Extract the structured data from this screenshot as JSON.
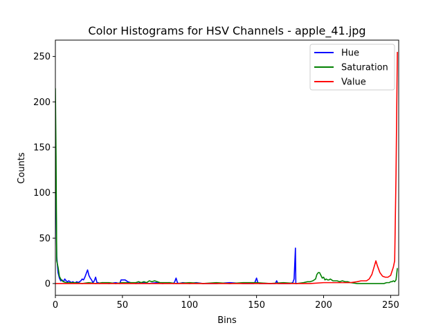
{
  "chart_data": {
    "type": "line",
    "title": "Color Histograms for HSV Channels - apple_41.jpg",
    "xlabel": "Bins",
    "ylabel": "Counts",
    "xlim": [
      0,
      256
    ],
    "ylim": [
      -13,
      268
    ],
    "xticks": [
      0,
      50,
      100,
      150,
      200,
      250
    ],
    "yticks": [
      0,
      50,
      100,
      150,
      200,
      250
    ],
    "grid": false,
    "legend_position": "top-right",
    "series": [
      {
        "name": "Hue",
        "color": "#0000ff",
        "points": [
          [
            0,
            160
          ],
          [
            1,
            30
          ],
          [
            2,
            12
          ],
          [
            3,
            6
          ],
          [
            4,
            3
          ],
          [
            5,
            4
          ],
          [
            6,
            2
          ],
          [
            7,
            5
          ],
          [
            8,
            3
          ],
          [
            9,
            2
          ],
          [
            10,
            3
          ],
          [
            11,
            2
          ],
          [
            12,
            1
          ],
          [
            13,
            2
          ],
          [
            14,
            1
          ],
          [
            15,
            1
          ],
          [
            16,
            2
          ],
          [
            17,
            1
          ],
          [
            18,
            2
          ],
          [
            19,
            3
          ],
          [
            20,
            5
          ],
          [
            21,
            4
          ],
          [
            22,
            7
          ],
          [
            23,
            11
          ],
          [
            24,
            15
          ],
          [
            25,
            9
          ],
          [
            26,
            6
          ],
          [
            27,
            4
          ],
          [
            28,
            1
          ],
          [
            29,
            3
          ],
          [
            30,
            7
          ],
          [
            31,
            1
          ],
          [
            32,
            1
          ],
          [
            33,
            0
          ],
          [
            35,
            1
          ],
          [
            40,
            0
          ],
          [
            45,
            1
          ],
          [
            48,
            0
          ],
          [
            49,
            4
          ],
          [
            50,
            4
          ],
          [
            52,
            4
          ],
          [
            54,
            2
          ],
          [
            56,
            1
          ],
          [
            60,
            0
          ],
          [
            65,
            1
          ],
          [
            70,
            0
          ],
          [
            75,
            1
          ],
          [
            80,
            0
          ],
          [
            85,
            1
          ],
          [
            88,
            0
          ],
          [
            89,
            2
          ],
          [
            90,
            6
          ],
          [
            91,
            1
          ],
          [
            92,
            0
          ],
          [
            95,
            1
          ],
          [
            100,
            0
          ],
          [
            105,
            1
          ],
          [
            110,
            0
          ],
          [
            120,
            0
          ],
          [
            130,
            1
          ],
          [
            140,
            0
          ],
          [
            148,
            0
          ],
          [
            149,
            2
          ],
          [
            150,
            6
          ],
          [
            151,
            1
          ],
          [
            152,
            0
          ],
          [
            160,
            0
          ],
          [
            164,
            0
          ],
          [
            165,
            3
          ],
          [
            166,
            0
          ],
          [
            170,
            0
          ],
          [
            175,
            0
          ],
          [
            177,
            1
          ],
          [
            178,
            5
          ],
          [
            179,
            39
          ],
          [
            179.3,
            0
          ],
          [
            180,
            0
          ]
        ]
      },
      {
        "name": "Saturation",
        "color": "#008000",
        "points": [
          [
            0,
            215
          ],
          [
            0.5,
            140
          ],
          [
            1,
            25
          ],
          [
            2,
            18
          ],
          [
            3,
            8
          ],
          [
            4,
            5
          ],
          [
            5,
            3
          ],
          [
            6,
            2
          ],
          [
            8,
            1
          ],
          [
            10,
            1
          ],
          [
            15,
            1
          ],
          [
            20,
            0
          ],
          [
            25,
            1
          ],
          [
            30,
            0
          ],
          [
            35,
            1
          ],
          [
            40,
            1
          ],
          [
            45,
            0
          ],
          [
            50,
            1
          ],
          [
            55,
            1
          ],
          [
            60,
            1
          ],
          [
            62,
            2
          ],
          [
            64,
            1
          ],
          [
            66,
            2
          ],
          [
            68,
            1
          ],
          [
            70,
            3
          ],
          [
            72,
            2
          ],
          [
            74,
            3
          ],
          [
            76,
            2
          ],
          [
            78,
            1
          ],
          [
            80,
            1
          ],
          [
            85,
            1
          ],
          [
            90,
            0
          ],
          [
            100,
            1
          ],
          [
            110,
            0
          ],
          [
            120,
            1
          ],
          [
            130,
            0
          ],
          [
            140,
            1
          ],
          [
            150,
            1
          ],
          [
            160,
            0
          ],
          [
            170,
            1
          ],
          [
            180,
            0
          ],
          [
            185,
            1
          ],
          [
            188,
            2
          ],
          [
            190,
            2
          ],
          [
            192,
            3
          ],
          [
            194,
            5
          ],
          [
            195,
            10
          ],
          [
            196,
            12
          ],
          [
            197,
            12
          ],
          [
            198,
            9
          ],
          [
            199,
            6
          ],
          [
            200,
            7
          ],
          [
            201,
            4
          ],
          [
            202,
            5
          ],
          [
            203,
            4
          ],
          [
            204,
            4
          ],
          [
            205,
            5
          ],
          [
            206,
            4
          ],
          [
            207,
            3
          ],
          [
            208,
            3
          ],
          [
            210,
            3
          ],
          [
            212,
            2
          ],
          [
            214,
            3
          ],
          [
            216,
            2
          ],
          [
            218,
            2
          ],
          [
            220,
            1
          ],
          [
            225,
            0
          ],
          [
            230,
            0
          ],
          [
            240,
            0
          ],
          [
            245,
            0
          ],
          [
            247,
            1
          ],
          [
            249,
            1
          ],
          [
            250,
            2
          ],
          [
            251,
            2
          ],
          [
            252,
            3
          ],
          [
            253,
            2
          ],
          [
            254,
            4
          ],
          [
            255,
            17
          ]
        ]
      },
      {
        "name": "Value",
        "color": "#ff0000",
        "points": [
          [
            0,
            0
          ],
          [
            20,
            0
          ],
          [
            40,
            0
          ],
          [
            60,
            0
          ],
          [
            80,
            0
          ],
          [
            100,
            0
          ],
          [
            120,
            0
          ],
          [
            140,
            0
          ],
          [
            160,
            0
          ],
          [
            180,
            0
          ],
          [
            190,
            0
          ],
          [
            200,
            1
          ],
          [
            210,
            1
          ],
          [
            220,
            1
          ],
          [
            225,
            2
          ],
          [
            228,
            3
          ],
          [
            230,
            3
          ],
          [
            232,
            3
          ],
          [
            234,
            5
          ],
          [
            236,
            10
          ],
          [
            238,
            20
          ],
          [
            239,
            25
          ],
          [
            240,
            20
          ],
          [
            242,
            12
          ],
          [
            244,
            8
          ],
          [
            246,
            7
          ],
          [
            248,
            7
          ],
          [
            250,
            9
          ],
          [
            252,
            18
          ],
          [
            253,
            25
          ],
          [
            254,
            120
          ],
          [
            255,
            255
          ]
        ]
      }
    ]
  }
}
